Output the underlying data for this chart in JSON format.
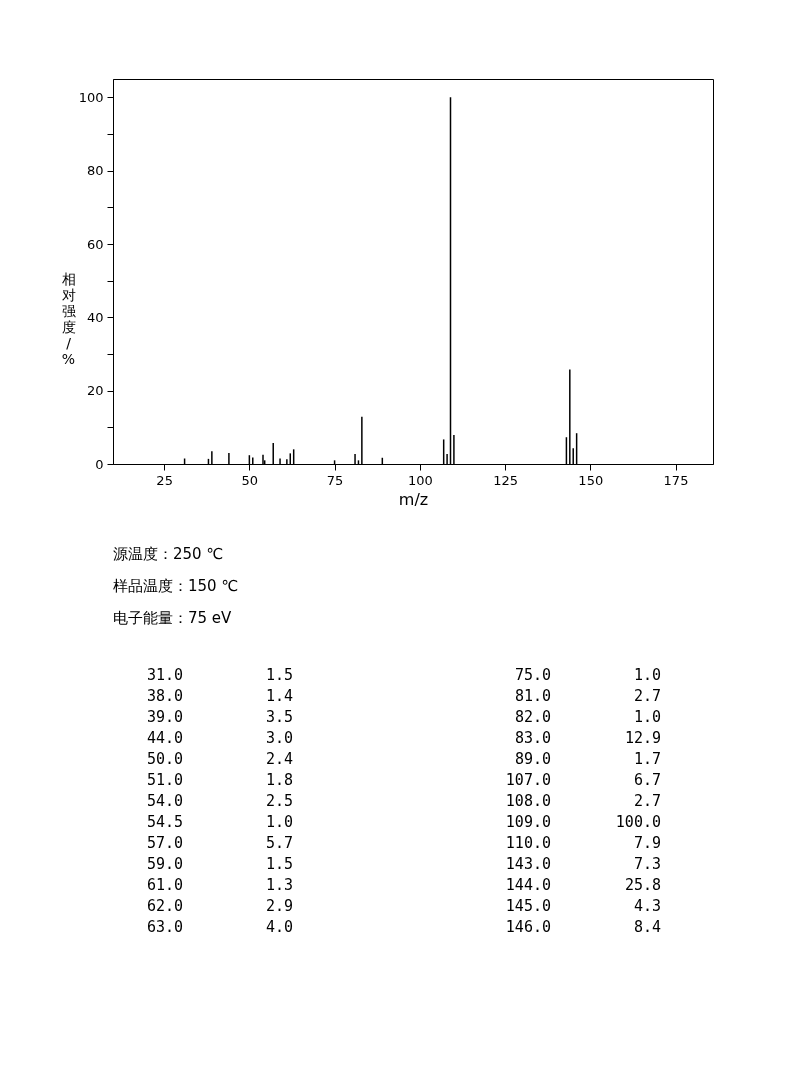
{
  "chart_data": [
    {
      "type": "bar",
      "xlabel": "m/z",
      "ylabel": "相对强度/%",
      "x": [
        31.0,
        38.0,
        39.0,
        44.0,
        50.0,
        51.0,
        54.0,
        54.5,
        57.0,
        59.0,
        61.0,
        62.0,
        63.0,
        75.0,
        81.0,
        82.0,
        83.0,
        89.0,
        107.0,
        108.0,
        109.0,
        110.0,
        143.0,
        144.0,
        145.0,
        146.0
      ],
      "values": [
        1.5,
        1.4,
        3.5,
        3.0,
        2.4,
        1.8,
        2.5,
        1.0,
        5.7,
        1.5,
        1.3,
        2.9,
        4.0,
        1.0,
        2.7,
        1.0,
        12.9,
        1.7,
        6.7,
        2.7,
        100.0,
        7.9,
        7.3,
        25.8,
        4.3,
        8.4
      ],
      "color": "#000000",
      "xlim": [
        10,
        186
      ],
      "xticks": [
        25,
        50,
        75,
        100,
        125,
        150,
        175
      ],
      "ylim": [
        0,
        105
      ],
      "yticks": [
        0,
        {
          "value": 10,
          "label": null
        },
        20,
        {
          "value": 30,
          "label": null
        },
        40,
        {
          "value": 50,
          "label": null
        },
        60,
        {
          "value": 70,
          "label": null
        },
        80,
        {
          "value": 90,
          "label": null
        },
        100
      ],
      "annotations": [
        "源温度：250 ℃",
        "样品温度：150 ℃",
        "电子能量：75 eV"
      ]
    },
    {
      "type": "other",
      "annotations": [
        "31.0",
        "1.5",
        "38.0",
        "1.4",
        "39.0",
        "3.5",
        "44.0",
        "3.0",
        "50.0",
        "2.4",
        "51.0",
        "1.8",
        "54.0",
        "2.5",
        "54.5",
        "1.0",
        "57.0",
        "5.7",
        "59.0",
        "1.5",
        "61.0",
        "1.3",
        "62.0",
        "2.9",
        "63.0",
        "4.0",
        "75.0",
        "1.0",
        "81.0",
        "2.7",
        "82.0",
        "1.0",
        "83.0",
        "12.9",
        "89.0",
        "1.7",
        "107.0",
        "6.7",
        "108.0",
        "2.7",
        "109.0",
        "100.0",
        "110.0",
        "7.9",
        "143.0",
        "7.3",
        "144.0",
        "25.8",
        "145.0",
        "4.3",
        "146.0",
        "8.4"
      ]
    }
  ]
}
